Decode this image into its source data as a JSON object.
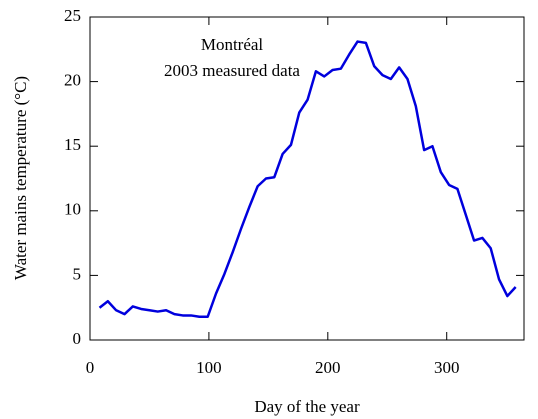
{
  "chart_data": {
    "type": "line",
    "annotations": [
      "Montréal",
      "2003 measured data"
    ],
    "xlabel": "Day of the year",
    "ylabel": "Water mains temperature (°C)",
    "x": [
      8,
      15,
      22,
      29,
      36,
      43,
      50,
      57,
      64,
      71,
      78,
      85,
      92,
      99,
      106,
      113,
      120,
      127,
      134,
      141,
      148,
      155,
      162,
      169,
      176,
      183,
      190,
      197,
      204,
      211,
      218,
      225,
      232,
      239,
      246,
      253,
      260,
      267,
      274,
      281,
      288,
      295,
      302,
      309,
      316,
      323,
      330,
      337,
      344,
      351,
      358
    ],
    "series": [
      {
        "color": "#0000dd",
        "values": [
          2.5,
          3.0,
          2.3,
          2.0,
          2.6,
          2.4,
          2.3,
          2.2,
          2.3,
          2.0,
          1.9,
          1.9,
          1.8,
          1.8,
          3.6,
          5.1,
          6.8,
          8.6,
          10.3,
          11.9,
          12.5,
          12.6,
          14.4,
          15.1,
          17.6,
          18.6,
          20.8,
          20.4,
          20.9,
          21.0,
          22.1,
          23.1,
          23.0,
          21.2,
          20.5,
          20.2,
          21.1,
          20.2,
          18.1,
          14.7,
          15.0,
          13.0,
          12.0,
          11.7,
          9.7,
          7.7,
          7.9,
          7.1,
          4.7,
          3.4,
          4.1
        ]
      }
    ],
    "xlim": [
      0,
      365
    ],
    "xticks": [
      0,
      100,
      200,
      300
    ],
    "ylim": [
      0,
      25
    ],
    "yticks": [
      0,
      5,
      10,
      15,
      20,
      25
    ]
  }
}
